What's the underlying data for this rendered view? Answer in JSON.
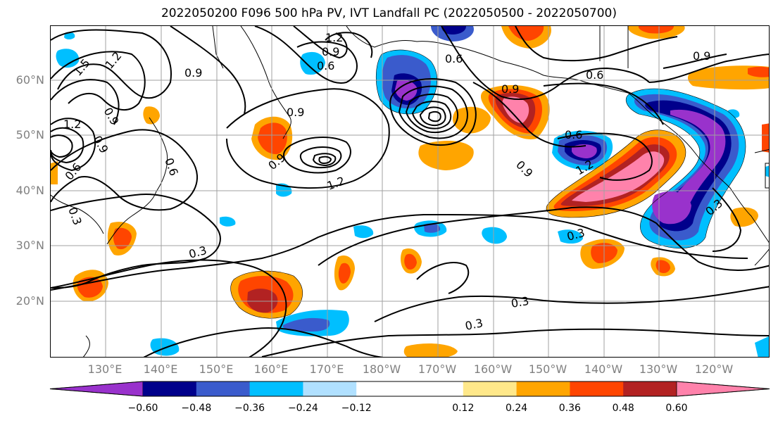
{
  "title": "2022050200 F096 500 hPa PV, IVT Landfall PC (2022050500 - 2022050700)",
  "lat_labels": [
    "60°N",
    "50°N",
    "40°N",
    "30°N",
    "20°N"
  ],
  "lon_labels": [
    "130°E",
    "140°E",
    "150°E",
    "160°E",
    "170°E",
    "180°W",
    "170°W",
    "160°W",
    "150°W",
    "140°W",
    "130°W",
    "120°W"
  ],
  "colorbar": {
    "colors": [
      "#9932cc",
      "#00008b",
      "#3a5bcc",
      "#00bfff",
      "#b0e0ff",
      "#ffffff",
      "#ffffff",
      "#ffe88a",
      "#ffa500",
      "#ff4500",
      "#b22222",
      "#ff82ab"
    ],
    "tick_labels": [
      "−0.60",
      "−0.48",
      "−0.36",
      "−0.24",
      "−0.12",
      "0.12",
      "0.24",
      "0.36",
      "0.48",
      "0.60"
    ]
  },
  "contour_labels": [
    "1.2",
    "0.9",
    "0.6",
    "1.5",
    "1.2",
    "0.9",
    "0.9",
    "1.2",
    "0.9",
    "0.6",
    "0.3",
    "0.9",
    "0.6",
    "0.9",
    "1.2",
    "0.9",
    "0.6",
    "0.6",
    "0.3",
    "0.3",
    "0.3",
    "0.3",
    "0.9",
    "0.6",
    "1.2",
    "0.9",
    "0.3"
  ],
  "map": {
    "positive_fill_colors": [
      "#ffe88a",
      "#ffa500",
      "#ff4500",
      "#b22222",
      "#ff82ab"
    ],
    "negative_fill_colors": [
      "#b0e0ff",
      "#00bfff",
      "#3a5bcc",
      "#00008b",
      "#9932cc"
    ]
  }
}
